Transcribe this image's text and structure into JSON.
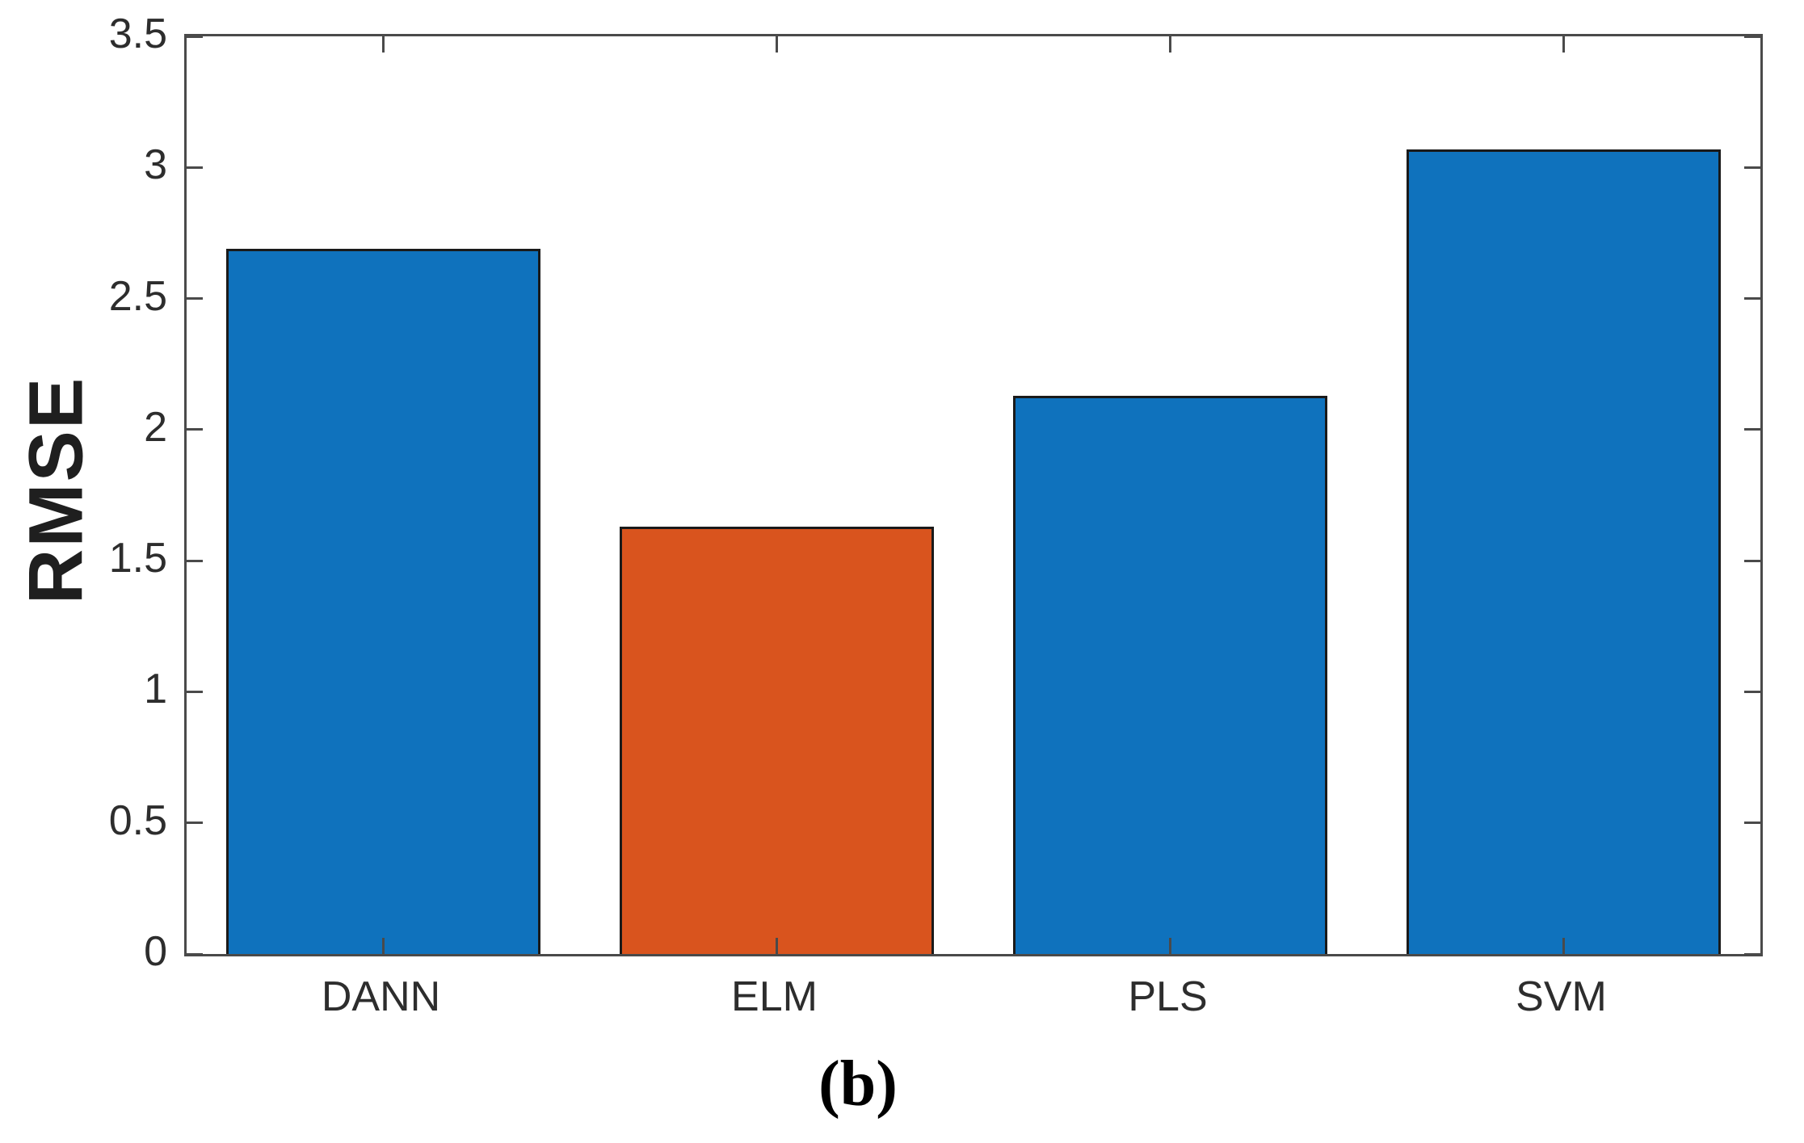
{
  "chart_data": {
    "type": "bar",
    "categories": [
      "DANN",
      "ELM",
      "PLS",
      "SVM"
    ],
    "values": [
      2.69,
      1.63,
      2.13,
      3.07
    ],
    "bar_colors": [
      "#0f72bd",
      "#d9541e",
      "#0f72bd",
      "#0f72bd"
    ],
    "title": "",
    "xlabel": "",
    "ylabel": "RMSE",
    "ylim": [
      0,
      3.5
    ],
    "yticks": [
      0,
      0.5,
      1,
      1.5,
      2,
      2.5,
      3,
      3.5
    ],
    "ytick_labels": [
      "0",
      "0.5",
      "1",
      "1.5",
      "2",
      "2.5",
      "3",
      "3.5"
    ],
    "bar_width_fraction": 0.8,
    "grid": false,
    "legend": null,
    "box": "on",
    "tick_direction": "in"
  },
  "caption": {
    "label": "(b)"
  },
  "colors": {
    "axis": "#4a4a4a",
    "bar_edge": "#1a1a1a",
    "tick_text": "#2d2d2d",
    "background": "#ffffff"
  }
}
